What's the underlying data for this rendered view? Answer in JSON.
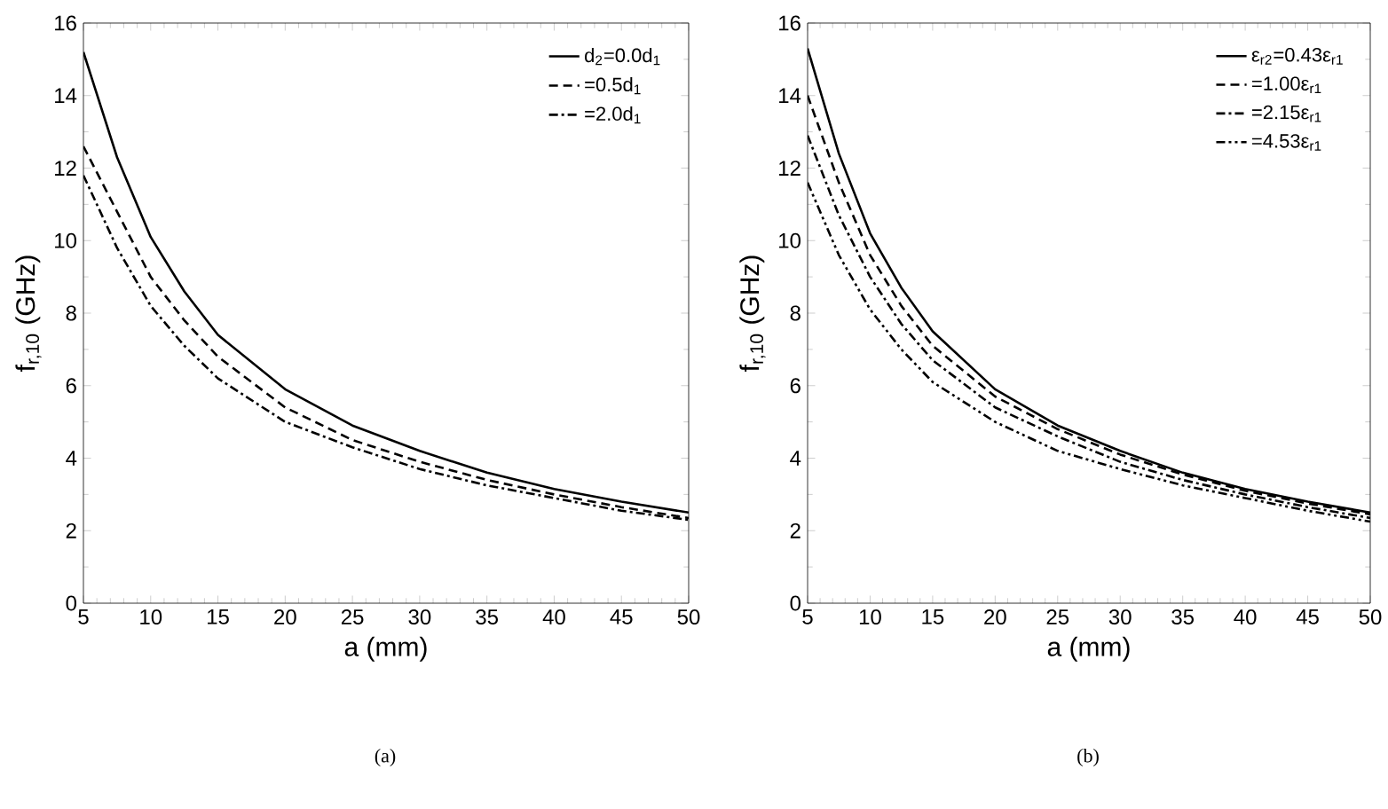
{
  "chart_data": [
    {
      "type": "line",
      "xlabel": "a (mm)",
      "ylabel": "f$_{r,10}$ (GHz)",
      "annotations": [
        "(a)"
      ],
      "x": [
        5,
        7.5,
        10,
        12.5,
        15,
        20,
        25,
        30,
        35,
        40,
        45,
        50
      ],
      "series": [
        {
          "name": "d$_{2}$=0.0d$_{1}$",
          "color": "#000000",
          "line_style": "solid",
          "values": [
            15.2,
            12.3,
            10.1,
            8.6,
            7.4,
            5.9,
            4.9,
            4.2,
            3.6,
            3.15,
            2.8,
            2.5
          ]
        },
        {
          "name": "=0.5d$_{1}$",
          "color": "#000000",
          "line_style": "dashed",
          "values": [
            12.6,
            10.8,
            9.0,
            7.8,
            6.8,
            5.4,
            4.5,
            3.9,
            3.4,
            3.0,
            2.65,
            2.35
          ]
        },
        {
          "name": "=2.0d$_{1}$",
          "color": "#000000",
          "line_style": "dashdot",
          "values": [
            11.8,
            9.8,
            8.2,
            7.1,
            6.2,
            5.0,
            4.3,
            3.7,
            3.25,
            2.9,
            2.55,
            2.3
          ]
        }
      ],
      "xlim": [
        5,
        50
      ],
      "ylim": [
        0,
        16
      ],
      "xticks": [
        5,
        10,
        15,
        20,
        25,
        30,
        35,
        40,
        45,
        50
      ],
      "yticks": [
        0,
        2,
        4,
        6,
        8,
        10,
        12,
        14,
        16
      ],
      "legend": "top right",
      "grid": false
    },
    {
      "type": "line",
      "xlabel": "a (mm)",
      "ylabel": "f$_{r,10}$ (GHz)",
      "annotations": [
        "(b)"
      ],
      "x": [
        5,
        7.5,
        10,
        12.5,
        15,
        20,
        25,
        30,
        35,
        40,
        45,
        50
      ],
      "series": [
        {
          "name": "ε$_{r2}$=0.43ε$_{r1}$",
          "color": "#000000",
          "line_style": "solid",
          "values": [
            15.3,
            12.4,
            10.2,
            8.7,
            7.5,
            5.9,
            4.9,
            4.2,
            3.6,
            3.15,
            2.8,
            2.5
          ]
        },
        {
          "name": "=1.00ε$_{r1}$",
          "color": "#000000",
          "line_style": "dashed",
          "values": [
            14.0,
            11.6,
            9.6,
            8.2,
            7.1,
            5.7,
            4.8,
            4.1,
            3.55,
            3.1,
            2.75,
            2.45
          ]
        },
        {
          "name": "=2.15ε$_{r1}$",
          "color": "#000000",
          "line_style": "dashdot",
          "values": [
            12.9,
            10.7,
            9.0,
            7.7,
            6.7,
            5.4,
            4.6,
            3.9,
            3.4,
            3.0,
            2.65,
            2.35
          ]
        },
        {
          "name": "=4.53ε$_{r1}$",
          "color": "#000000",
          "line_style": "dashdotdot",
          "values": [
            11.6,
            9.6,
            8.1,
            7.0,
            6.1,
            5.0,
            4.2,
            3.7,
            3.25,
            2.9,
            2.55,
            2.25
          ]
        }
      ],
      "xlim": [
        5,
        50
      ],
      "ylim": [
        0,
        16
      ],
      "xticks": [
        5,
        10,
        15,
        20,
        25,
        30,
        35,
        40,
        45,
        50
      ],
      "yticks": [
        0,
        2,
        4,
        6,
        8,
        10,
        12,
        14,
        16
      ],
      "legend": "top right",
      "grid": false
    }
  ]
}
